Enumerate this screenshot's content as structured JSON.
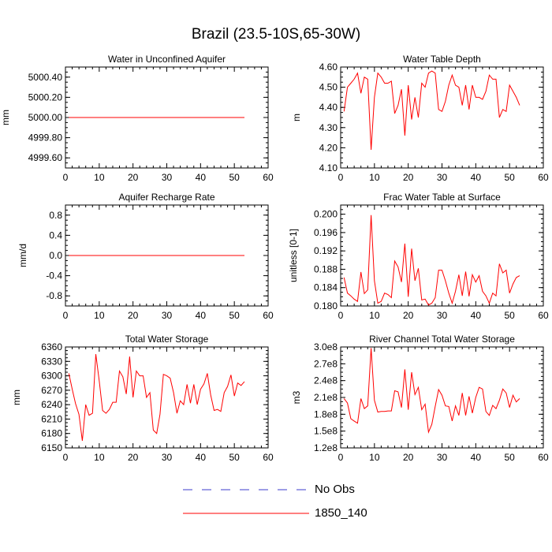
{
  "figure": {
    "title": "Brazil (23.5-10S,65-30W)"
  },
  "legend": {
    "items": [
      {
        "label": "No Obs",
        "color": "#3b3bcc",
        "style": "dashed"
      },
      {
        "label": "1850_140",
        "color": "#ff0000",
        "style": "solid"
      }
    ]
  },
  "chart_data": [
    {
      "type": "line",
      "title": "Water in Unconfined Aquifer",
      "ylabel": "mm",
      "xlim": [
        0,
        60
      ],
      "ylim": [
        4999.5,
        5000.5
      ],
      "xticks": [
        0,
        10,
        20,
        30,
        40,
        50,
        60
      ],
      "yticks": [
        4999.6,
        4999.8,
        5000.0,
        5000.2,
        5000.4
      ],
      "ytick_labels": [
        "4999.60",
        "4999.80",
        "5000.00",
        "5000.20",
        "5000.40"
      ],
      "series": [
        {
          "name": "1850_140",
          "color": "#ff0000",
          "x": [
            1,
            53
          ],
          "values": [
            5000.0,
            5000.0
          ]
        }
      ]
    },
    {
      "type": "line",
      "title": "Water Table Depth",
      "ylabel": "m",
      "xlim": [
        0,
        60
      ],
      "ylim": [
        4.1,
        4.6
      ],
      "xticks": [
        0,
        10,
        20,
        30,
        40,
        50,
        60
      ],
      "yticks": [
        4.1,
        4.2,
        4.3,
        4.4,
        4.5,
        4.6
      ],
      "ytick_labels": [
        "4.10",
        "4.20",
        "4.30",
        "4.40",
        "4.50",
        "4.60"
      ],
      "series": [
        {
          "name": "1850_140",
          "color": "#ff0000",
          "x": [
            1,
            2,
            3,
            4,
            5,
            6,
            7,
            8,
            9,
            10,
            11,
            12,
            13,
            14,
            15,
            16,
            17,
            18,
            19,
            20,
            21,
            22,
            23,
            24,
            25,
            26,
            27,
            28,
            29,
            30,
            31,
            32,
            33,
            34,
            35,
            36,
            37,
            38,
            39,
            40,
            41,
            42,
            43,
            44,
            45,
            46,
            47,
            48,
            49,
            50,
            51,
            52,
            53
          ],
          "values": [
            4.38,
            4.5,
            4.52,
            4.54,
            4.57,
            4.47,
            4.55,
            4.54,
            4.19,
            4.45,
            4.57,
            4.55,
            4.52,
            4.52,
            4.53,
            4.37,
            4.41,
            4.49,
            4.26,
            4.51,
            4.34,
            4.45,
            4.35,
            4.52,
            4.5,
            4.57,
            4.58,
            4.57,
            4.39,
            4.38,
            4.43,
            4.51,
            4.56,
            4.51,
            4.5,
            4.41,
            4.51,
            4.39,
            4.51,
            4.45,
            4.45,
            4.44,
            4.48,
            4.56,
            4.54,
            4.54,
            4.35,
            4.39,
            4.38,
            4.51,
            4.48,
            4.45,
            4.41
          ]
        }
      ]
    },
    {
      "type": "line",
      "title": "Aquifer Recharge Rate",
      "ylabel": "mm/d",
      "xlim": [
        0,
        60
      ],
      "ylim": [
        -1,
        1
      ],
      "xticks": [
        0,
        10,
        20,
        30,
        40,
        50,
        60
      ],
      "yticks": [
        -0.8,
        -0.4,
        0.0,
        0.4,
        0.8
      ],
      "ytick_labels": [
        "-0.8",
        "-0.4",
        "0.0",
        "0.4",
        "0.8"
      ],
      "series": [
        {
          "name": "1850_140",
          "color": "#ff0000",
          "x": [
            1,
            53
          ],
          "values": [
            0.0,
            0.0
          ]
        }
      ]
    },
    {
      "type": "line",
      "title": "Frac Water Table at Surface",
      "ylabel": "unitless [0-1]",
      "xlim": [
        0,
        60
      ],
      "ylim": [
        0.18,
        0.202
      ],
      "xticks": [
        0,
        10,
        20,
        30,
        40,
        50,
        60
      ],
      "yticks": [
        0.18,
        0.184,
        0.188,
        0.192,
        0.196,
        0.2
      ],
      "ytick_labels": [
        "0.180",
        "0.184",
        "0.188",
        "0.192",
        "0.196",
        "0.200"
      ],
      "series": [
        {
          "name": "1850_140",
          "color": "#ff0000",
          "x": [
            1,
            2,
            3,
            4,
            5,
            6,
            7,
            8,
            9,
            10,
            11,
            12,
            13,
            14,
            15,
            16,
            17,
            18,
            19,
            20,
            21,
            22,
            23,
            24,
            25,
            26,
            27,
            28,
            29,
            30,
            31,
            32,
            33,
            34,
            35,
            36,
            37,
            38,
            39,
            40,
            41,
            42,
            43,
            44,
            45,
            46,
            47,
            48,
            49,
            50,
            51,
            52,
            53
          ],
          "values": [
            0.1862,
            0.1828,
            0.1822,
            0.1815,
            0.181,
            0.1874,
            0.1827,
            0.1835,
            0.1998,
            0.1855,
            0.1806,
            0.181,
            0.1828,
            0.1825,
            0.1818,
            0.1898,
            0.1885,
            0.1852,
            0.1936,
            0.182,
            0.1925,
            0.1855,
            0.1882,
            0.1813,
            0.1815,
            0.1802,
            0.1806,
            0.1818,
            0.1878,
            0.1878,
            0.1855,
            0.1828,
            0.1806,
            0.1832,
            0.1868,
            0.1822,
            0.1875,
            0.1821,
            0.1868,
            0.1852,
            0.1866,
            0.1832,
            0.1822,
            0.1806,
            0.1828,
            0.1822,
            0.1892,
            0.1872,
            0.1878,
            0.1828,
            0.1848,
            0.1862,
            0.1866
          ]
        }
      ]
    },
    {
      "type": "line",
      "title": "Total Water Storage",
      "ylabel": "mm",
      "xlim": [
        0,
        60
      ],
      "ylim": [
        6150,
        6360
      ],
      "xticks": [
        0,
        10,
        20,
        30,
        40,
        50,
        60
      ],
      "yticks": [
        6150,
        6180,
        6210,
        6240,
        6270,
        6300,
        6330,
        6360
      ],
      "ytick_labels": [
        "6150",
        "6180",
        "6210",
        "6240",
        "6270",
        "6300",
        "6330",
        "6360"
      ],
      "series": [
        {
          "name": "1850_140",
          "color": "#ff0000",
          "x": [
            1,
            2,
            3,
            4,
            5,
            6,
            7,
            8,
            9,
            10,
            11,
            12,
            13,
            14,
            15,
            16,
            17,
            18,
            19,
            20,
            21,
            22,
            23,
            24,
            25,
            26,
            27,
            28,
            29,
            30,
            31,
            32,
            33,
            34,
            35,
            36,
            37,
            38,
            39,
            40,
            41,
            42,
            43,
            44,
            45,
            46,
            47,
            48,
            49,
            50,
            51,
            52,
            53
          ],
          "values": [
            6305,
            6272,
            6242,
            6220,
            6165,
            6240,
            6218,
            6222,
            6345,
            6290,
            6228,
            6222,
            6230,
            6245,
            6245,
            6310,
            6298,
            6262,
            6340,
            6255,
            6310,
            6300,
            6300,
            6255,
            6265,
            6187,
            6180,
            6220,
            6303,
            6300,
            6295,
            6265,
            6222,
            6248,
            6240,
            6282,
            6243,
            6282,
            6240,
            6272,
            6283,
            6305,
            6260,
            6228,
            6230,
            6226,
            6265,
            6278,
            6302,
            6258,
            6285,
            6280,
            6288
          ]
        }
      ]
    },
    {
      "type": "line",
      "title": "River Channel Total Water Storage",
      "ylabel": "m3",
      "xlim": [
        0,
        60
      ],
      "ylim": [
        120000000.0,
        300000000.0
      ],
      "xticks": [
        0,
        10,
        20,
        30,
        40,
        50,
        60
      ],
      "yticks": [
        120000000.0,
        150000000.0,
        180000000.0,
        210000000.0,
        240000000.0,
        270000000.0,
        300000000.0
      ],
      "ytick_labels": [
        "1.2e8",
        "1.5e8",
        "1.8e8",
        "2.1e8",
        "2.4e8",
        "2.7e8",
        "3.0e8"
      ],
      "series": [
        {
          "name": "1850_140",
          "color": "#ff0000",
          "x": [
            1,
            2,
            3,
            4,
            5,
            6,
            7,
            8,
            9,
            10,
            11,
            12,
            13,
            14,
            15,
            16,
            17,
            18,
            19,
            20,
            21,
            22,
            23,
            24,
            25,
            26,
            27,
            28,
            29,
            30,
            31,
            32,
            33,
            34,
            35,
            36,
            37,
            38,
            39,
            40,
            41,
            42,
            43,
            44,
            45,
            46,
            47,
            48,
            49,
            50,
            51,
            52,
            53
          ],
          "values": [
            208000000.0,
            200000000.0,
            172000000.0,
            168000000.0,
            164000000.0,
            208000000.0,
            190000000.0,
            195000000.0,
            298000000.0,
            205000000.0,
            184000000.0,
            185000000.0,
            185000000.0,
            186000000.0,
            186000000.0,
            222000000.0,
            220000000.0,
            192000000.0,
            260000000.0,
            188000000.0,
            255000000.0,
            215000000.0,
            228000000.0,
            188000000.0,
            198000000.0,
            148000000.0,
            162000000.0,
            194000000.0,
            224000000.0,
            214000000.0,
            195000000.0,
            194000000.0,
            168000000.0,
            195000000.0,
            178000000.0,
            218000000.0,
            178000000.0,
            212000000.0,
            182000000.0,
            210000000.0,
            228000000.0,
            225000000.0,
            185000000.0,
            178000000.0,
            196000000.0,
            190000000.0,
            205000000.0,
            225000000.0,
            218000000.0,
            192000000.0,
            214000000.0,
            202000000.0,
            208000000.0
          ]
        }
      ]
    }
  ]
}
